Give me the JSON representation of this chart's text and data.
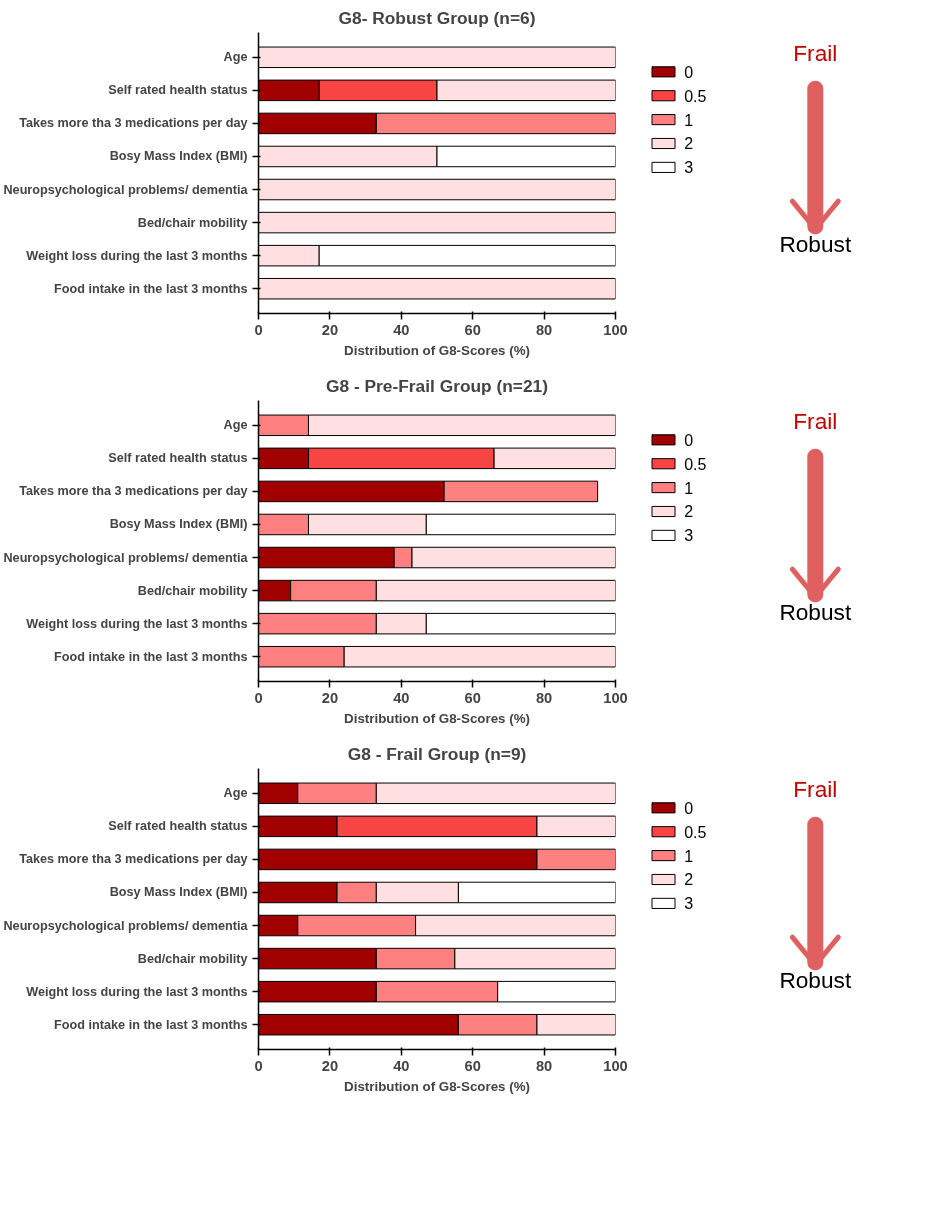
{
  "chart_data": [
    {
      "type": "bar",
      "orientation": "horizontal",
      "stacked": true,
      "title": "G8- Robust Group (n=6)",
      "xlabel": "Distribution of G8-Scores (%)",
      "categories": [
        "Age",
        "Self rated health status",
        "Takes more tha 3 medications per day",
        "Bosy Mass Index (BMI)",
        "Neuropsychological problems/ dementia",
        "Bed/chair mobility",
        "Weight loss during the last 3 months",
        "Food intake in the last 3 months"
      ],
      "series": [
        {
          "name": "0",
          "color": "#a00000",
          "values": [
            null,
            17,
            33,
            null,
            null,
            null,
            null,
            null
          ]
        },
        {
          "name": "0.5",
          "color": "#f94444",
          "values": [
            null,
            33,
            null,
            null,
            null,
            null,
            null,
            null
          ]
        },
        {
          "name": "1",
          "color": "#ff8080",
          "values": [
            null,
            null,
            67,
            null,
            null,
            null,
            null,
            null
          ]
        },
        {
          "name": "2",
          "color": "#ffdfe0",
          "values": [
            100,
            50,
            null,
            50,
            100,
            100,
            17,
            100
          ]
        },
        {
          "name": "3",
          "color": "#ffffff",
          "values": [
            null,
            null,
            null,
            50,
            null,
            null,
            83,
            null
          ]
        }
      ],
      "xlim": [
        0,
        100
      ],
      "xticks": [
        0,
        20,
        40,
        60,
        80,
        100
      ],
      "legend": "right",
      "annotations": [
        "Frail",
        "Robust"
      ]
    },
    {
      "type": "bar",
      "orientation": "horizontal",
      "stacked": true,
      "title": "G8 - Pre-Frail Group (n=21)",
      "xlabel": "Distribution of G8-Scores (%)",
      "categories": [
        "Age",
        "Self rated health status",
        "Takes more tha 3 medications per day",
        "Bosy Mass Index (BMI)",
        "Neuropsychological problems/ dementia",
        "Bed/chair mobility",
        "Weight loss during the last 3 months",
        "Food intake in the last 3 months"
      ],
      "series": [
        {
          "name": "0",
          "color": "#a00000",
          "values": [
            null,
            14,
            52,
            null,
            38,
            9,
            null,
            null
          ]
        },
        {
          "name": "0.5",
          "color": "#f94444",
          "values": [
            null,
            52,
            null,
            null,
            null,
            null,
            null,
            null
          ]
        },
        {
          "name": "1",
          "color": "#ff8080",
          "values": [
            14,
            null,
            43,
            14,
            5,
            24,
            33,
            24
          ]
        },
        {
          "name": "2",
          "color": "#ffdfe0",
          "values": [
            86,
            34,
            null,
            33,
            57,
            67,
            14,
            76
          ]
        },
        {
          "name": "3",
          "color": "#ffffff",
          "values": [
            null,
            null,
            null,
            53,
            null,
            null,
            53,
            null
          ]
        }
      ],
      "xlim": [
        0,
        100
      ],
      "xticks": [
        0,
        20,
        40,
        60,
        80,
        100
      ],
      "legend": "right",
      "annotations": [
        "Frail",
        "Robust"
      ]
    },
    {
      "type": "bar",
      "orientation": "horizontal",
      "stacked": true,
      "title": "G8 - Frail Group (n=9)",
      "xlabel": "Distribution of G8-Scores (%)",
      "categories": [
        "Age",
        "Self rated health status",
        "Takes more tha 3 medications per day",
        "Bosy Mass Index (BMI)",
        "Neuropsychological problems/ dementia",
        "Bed/chair mobility",
        "Weight loss during the last 3 months",
        "Food intake in the last 3 months"
      ],
      "series": [
        {
          "name": "0",
          "color": "#a00000",
          "values": [
            11,
            22,
            78,
            22,
            11,
            33,
            33,
            56
          ]
        },
        {
          "name": "0.5",
          "color": "#f94444",
          "values": [
            null,
            56,
            null,
            null,
            null,
            null,
            null,
            null
          ]
        },
        {
          "name": "1",
          "color": "#ff8080",
          "values": [
            22,
            null,
            22,
            11,
            33,
            22,
            34,
            22
          ]
        },
        {
          "name": "2",
          "color": "#ffdfe0",
          "values": [
            67,
            22,
            null,
            23,
            56,
            45,
            null,
            22
          ]
        },
        {
          "name": "3",
          "color": "#ffffff",
          "values": [
            null,
            null,
            null,
            44,
            null,
            null,
            33,
            null
          ]
        }
      ],
      "xlim": [
        0,
        100
      ],
      "xticks": [
        0,
        20,
        40,
        60,
        80,
        100
      ],
      "legend": "right",
      "annotations": [
        "Frail",
        "Robust"
      ]
    }
  ]
}
